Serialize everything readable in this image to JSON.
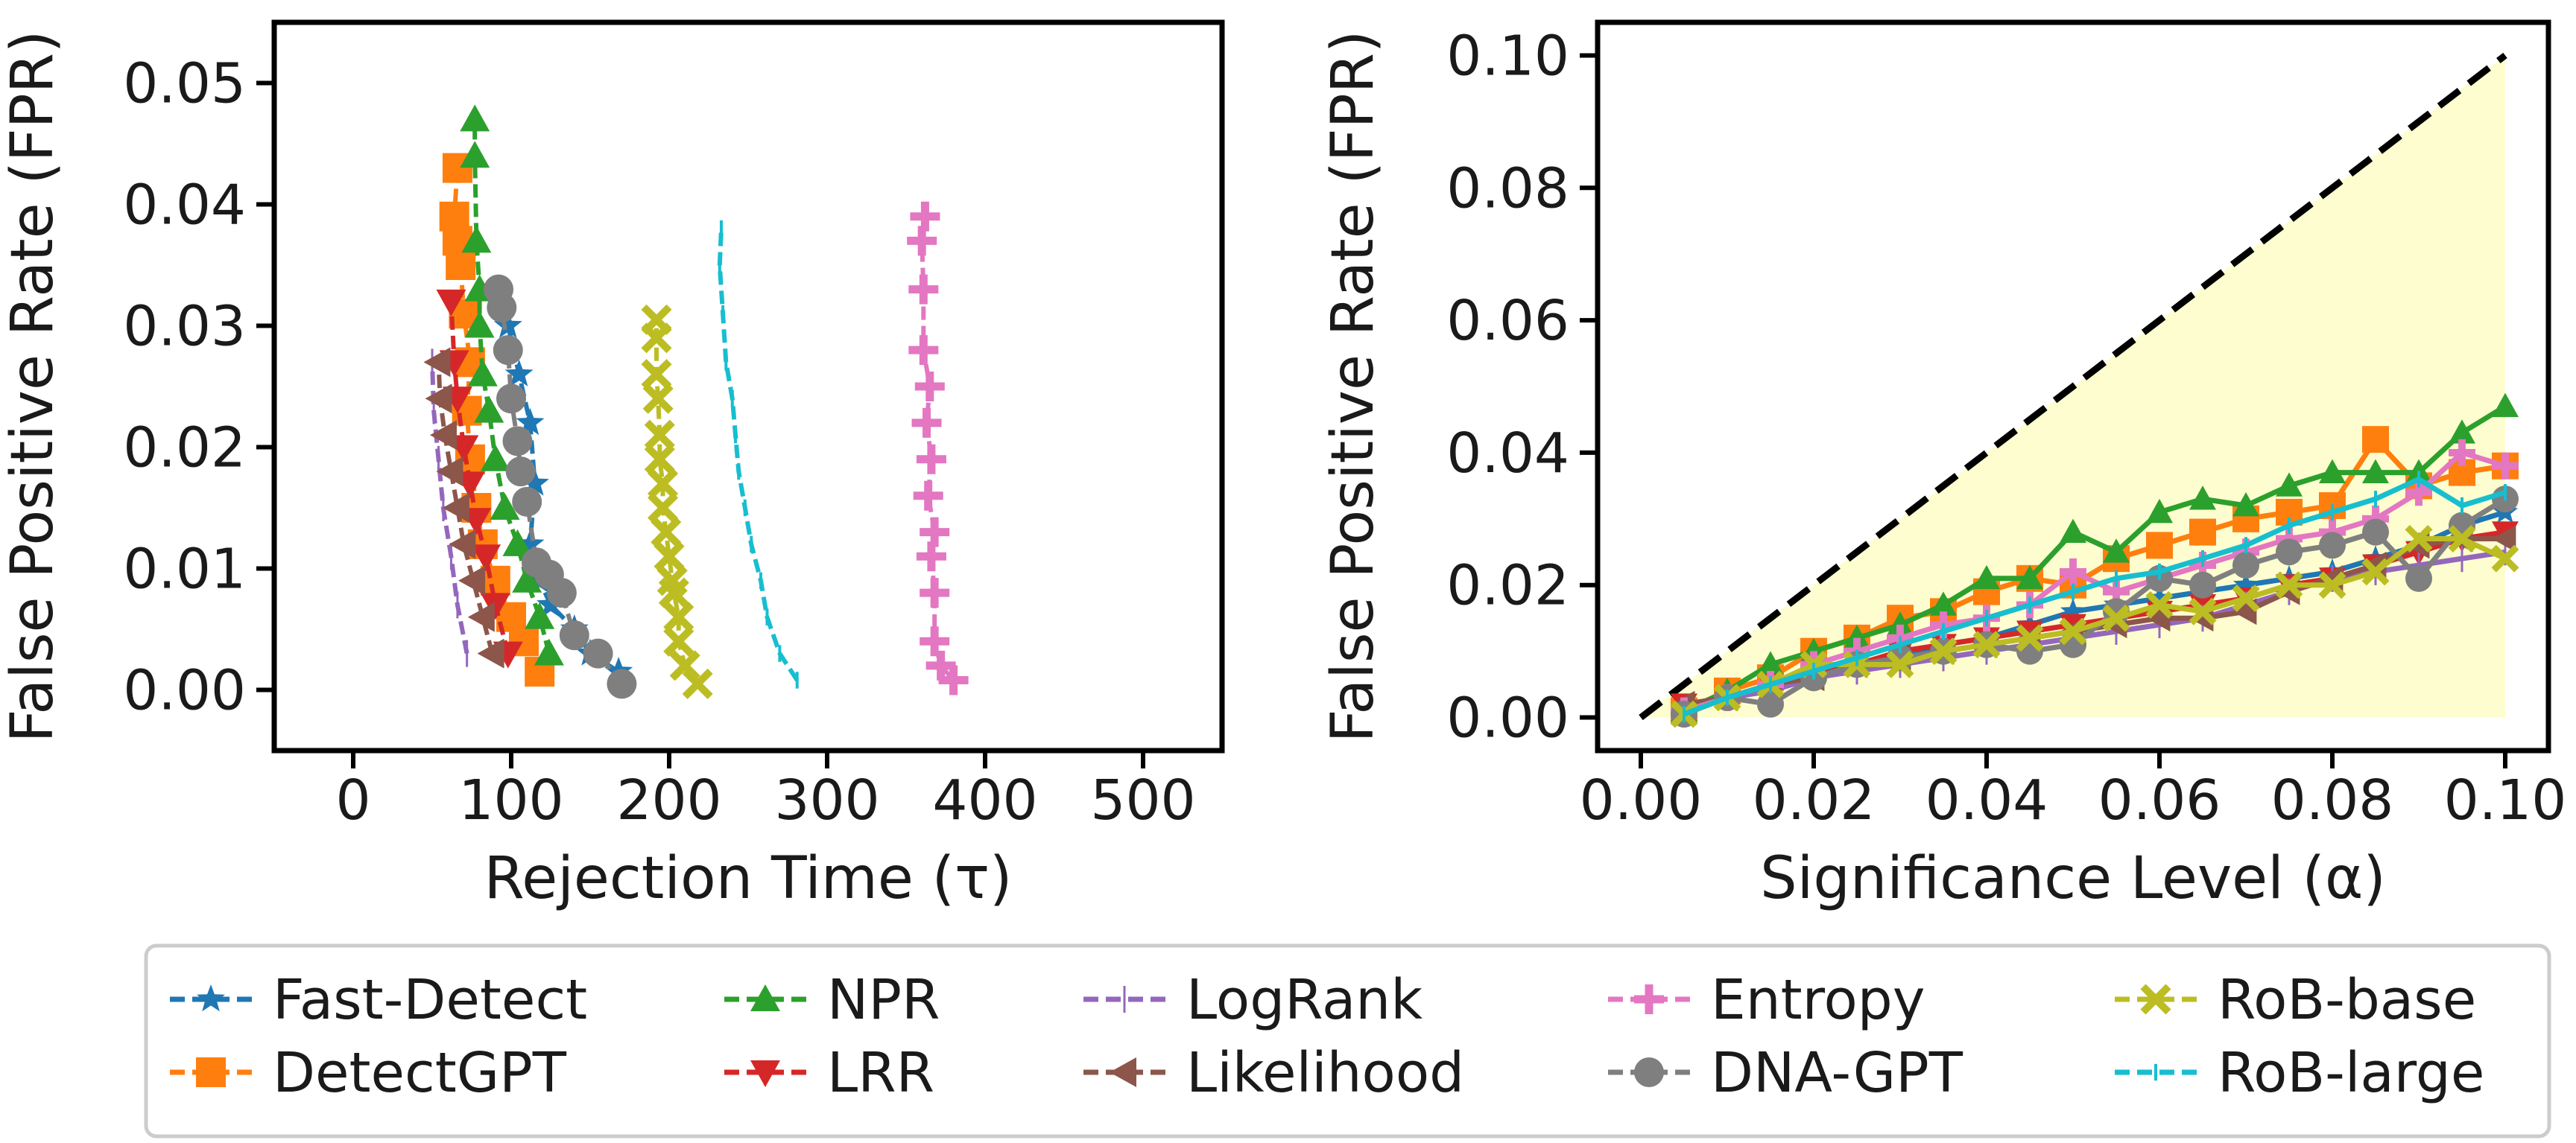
{
  "colors": {
    "Fast-Detect": "#1f77b4",
    "DetectGPT": "#ff7f0e",
    "NPR": "#2ca02c",
    "LRR": "#d62728",
    "LogRank": "#9467bd",
    "Likelihood": "#8c564b",
    "Entropy": "#e377c2",
    "DNA-GPT": "#7f7f7f",
    "RoB-base": "#bcbd22",
    "RoB-large": "#17becf",
    "shade": "#fdfdcf"
  },
  "legend": {
    "items": [
      {
        "label": "Fast-Detect",
        "marker": "star"
      },
      {
        "label": "DetectGPT",
        "marker": "square"
      },
      {
        "label": "NPR",
        "marker": "triangle-up"
      },
      {
        "label": "LRR",
        "marker": "triangle-down"
      },
      {
        "label": "LogRank",
        "marker": "vline"
      },
      {
        "label": "Likelihood",
        "marker": "triangle-left"
      },
      {
        "label": "Entropy",
        "marker": "plus"
      },
      {
        "label": "DNA-GPT",
        "marker": "circle"
      },
      {
        "label": "RoB-base",
        "marker": "x"
      },
      {
        "label": "RoB-large",
        "marker": "tick"
      }
    ],
    "placement": "bottom, below both panels, 5 columns"
  },
  "chart_data": [
    {
      "type": "line",
      "xlabel": "Rejection Time (τ)",
      "ylabel": "False Positive Rate (FPR)",
      "xlim": [
        -50,
        550
      ],
      "ylim": [
        -0.005,
        0.055
      ],
      "xticks": [
        "0",
        "100",
        "200",
        "300",
        "400",
        "500"
      ],
      "yticks": [
        "0.00",
        "0.01",
        "0.02",
        "0.03",
        "0.04",
        "0.05"
      ],
      "grid": false,
      "series": [
        {
          "name": "Fast-Detect",
          "points": [
            [
              168,
              0.0015
            ],
            [
              150,
              0.003
            ],
            [
              140,
              0.005
            ],
            [
              125,
              0.007
            ],
            [
              118,
              0.009
            ],
            [
              112,
              0.012
            ],
            [
              115,
              0.017
            ],
            [
              112,
              0.022
            ],
            [
              105,
              0.026
            ],
            [
              98,
              0.03
            ],
            [
              92,
              0.033
            ]
          ]
        },
        {
          "name": "DetectGPT",
          "points": [
            [
              118,
              0.0015
            ],
            [
              108,
              0.004
            ],
            [
              100,
              0.006
            ],
            [
              90,
              0.009
            ],
            [
              82,
              0.012
            ],
            [
              78,
              0.015
            ],
            [
              74,
              0.019
            ],
            [
              72,
              0.023
            ],
            [
              74,
              0.027
            ],
            [
              70,
              0.031
            ],
            [
              68,
              0.035
            ],
            [
              66,
              0.037
            ],
            [
              64,
              0.039
            ],
            [
              66,
              0.043
            ]
          ]
        },
        {
          "name": "NPR",
          "points": [
            [
              124,
              0.003
            ],
            [
              118,
              0.006
            ],
            [
              110,
              0.009
            ],
            [
              104,
              0.012
            ],
            [
              96,
              0.015
            ],
            [
              90,
              0.019
            ],
            [
              86,
              0.023
            ],
            [
              82,
              0.026
            ],
            [
              80,
              0.03
            ],
            [
              80,
              0.033
            ],
            [
              78,
              0.037
            ],
            [
              77,
              0.044
            ],
            [
              77,
              0.047
            ]
          ]
        },
        {
          "name": "LRR",
          "points": [
            [
              98,
              0.003
            ],
            [
              90,
              0.007
            ],
            [
              84,
              0.011
            ],
            [
              78,
              0.014
            ],
            [
              74,
              0.017
            ],
            [
              70,
              0.02
            ],
            [
              66,
              0.024
            ],
            [
              64,
              0.027
            ],
            [
              62,
              0.032
            ]
          ]
        },
        {
          "name": "LogRank",
          "points": [
            [
              72,
              0.003
            ],
            [
              66,
              0.007
            ],
            [
              62,
              0.011
            ],
            [
              57,
              0.015
            ],
            [
              54,
              0.019
            ],
            [
              51,
              0.023
            ],
            [
              50,
              0.027
            ]
          ]
        },
        {
          "name": "Likelihood",
          "points": [
            [
              88,
              0.003
            ],
            [
              82,
              0.006
            ],
            [
              76,
              0.009
            ],
            [
              70,
              0.012
            ],
            [
              66,
              0.015
            ],
            [
              62,
              0.018
            ],
            [
              58,
              0.021
            ],
            [
              55,
              0.024
            ],
            [
              54,
              0.027
            ]
          ]
        },
        {
          "name": "Entropy",
          "points": [
            [
              380,
              0.0008
            ],
            [
              372,
              0.002
            ],
            [
              368,
              0.004
            ],
            [
              368,
              0.008
            ],
            [
              366,
              0.011
            ],
            [
              368,
              0.013
            ],
            [
              364,
              0.016
            ],
            [
              366,
              0.019
            ],
            [
              363,
              0.022
            ],
            [
              365,
              0.025
            ],
            [
              361,
              0.028
            ],
            [
              361,
              0.033
            ],
            [
              360,
              0.037
            ],
            [
              362,
              0.039
            ]
          ]
        },
        {
          "name": "DNA-GPT",
          "points": [
            [
              170,
              0.0005
            ],
            [
              155,
              0.003
            ],
            [
              140,
              0.0045
            ],
            [
              132,
              0.008
            ],
            [
              124,
              0.0095
            ],
            [
              116,
              0.0105
            ],
            [
              110,
              0.0155
            ],
            [
              106,
              0.018
            ],
            [
              104,
              0.0205
            ],
            [
              100,
              0.024
            ],
            [
              98,
              0.028
            ],
            [
              94,
              0.0315
            ],
            [
              92,
              0.033
            ]
          ]
        },
        {
          "name": "RoB-base",
          "points": [
            [
              218,
              0.0005
            ],
            [
              210,
              0.002
            ],
            [
              206,
              0.004
            ],
            [
              206,
              0.006
            ],
            [
              203,
              0.008
            ],
            [
              202,
              0.009
            ],
            [
              200,
              0.011
            ],
            [
              198,
              0.013
            ],
            [
              196,
              0.015
            ],
            [
              196,
              0.017
            ],
            [
              194,
              0.019
            ],
            [
              194,
              0.021
            ],
            [
              193,
              0.024
            ],
            [
              192,
              0.026
            ],
            [
              192,
              0.029
            ],
            [
              192,
              0.0305
            ]
          ]
        },
        {
          "name": "RoB-large",
          "points": [
            [
              281,
              0.0008
            ],
            [
              270,
              0.003
            ],
            [
              262,
              0.006
            ],
            [
              258,
              0.009
            ],
            [
              252,
              0.012
            ],
            [
              248,
              0.015
            ],
            [
              244,
              0.018
            ],
            [
              242,
              0.021
            ],
            [
              240,
              0.024
            ],
            [
              236,
              0.027
            ],
            [
              234,
              0.031
            ],
            [
              232,
              0.035
            ],
            [
              233,
              0.038
            ]
          ]
        }
      ]
    },
    {
      "type": "line",
      "xlabel": "Significance Level (α)",
      "ylabel": "False Positive Rate (FPR)",
      "xlim": [
        -0.005,
        0.105
      ],
      "ylim": [
        -0.005,
        0.105
      ],
      "xticks": [
        "0.00",
        "0.02",
        "0.04",
        "0.06",
        "0.08",
        "0.10"
      ],
      "yticks": [
        "0.00",
        "0.02",
        "0.04",
        "0.06",
        "0.08",
        "0.10"
      ],
      "grid": false,
      "reference_line": {
        "from": [
          0,
          0
        ],
        "to": [
          0.1,
          0.1
        ],
        "style": "dashed",
        "color": "#000000"
      },
      "shaded_region": {
        "polygon": [
          [
            0,
            0
          ],
          [
            0.1,
            0.1
          ],
          [
            0.1,
            0
          ]
        ]
      },
      "x": [
        0.005,
        0.01,
        0.015,
        0.02,
        0.025,
        0.03,
        0.035,
        0.04,
        0.045,
        0.05,
        0.055,
        0.06,
        0.065,
        0.07,
        0.075,
        0.08,
        0.085,
        0.09,
        0.095,
        0.1
      ],
      "series": [
        {
          "name": "Fast-Detect",
          "values": [
            0.001,
            0.003,
            0.004,
            0.006,
            0.008,
            0.009,
            0.011,
            0.012,
            0.014,
            0.016,
            0.017,
            0.018,
            0.019,
            0.02,
            0.021,
            0.022,
            0.024,
            0.026,
            0.029,
            0.031
          ]
        },
        {
          "name": "DetectGPT",
          "values": [
            0.001,
            0.004,
            0.006,
            0.01,
            0.012,
            0.015,
            0.016,
            0.019,
            0.021,
            0.02,
            0.024,
            0.026,
            0.028,
            0.03,
            0.031,
            0.032,
            0.042,
            0.035,
            0.037,
            0.038
          ]
        },
        {
          "name": "NPR",
          "values": [
            0.001,
            0.004,
            0.008,
            0.01,
            0.012,
            0.014,
            0.017,
            0.021,
            0.021,
            0.028,
            0.025,
            0.031,
            0.033,
            0.032,
            0.035,
            0.037,
            0.037,
            0.037,
            0.043,
            0.047
          ]
        },
        {
          "name": "LRR",
          "values": [
            0.002,
            0.003,
            0.005,
            0.007,
            0.008,
            0.01,
            0.011,
            0.012,
            0.013,
            0.014,
            0.015,
            0.016,
            0.017,
            0.018,
            0.02,
            0.021,
            0.023,
            0.025,
            0.027,
            0.028
          ]
        },
        {
          "name": "LogRank",
          "values": [
            0.001,
            0.003,
            0.004,
            0.006,
            0.007,
            0.008,
            0.009,
            0.01,
            0.011,
            0.012,
            0.013,
            0.014,
            0.015,
            0.017,
            0.019,
            0.021,
            0.022,
            0.023,
            0.024,
            0.025
          ]
        },
        {
          "name": "Likelihood",
          "values": [
            0.002,
            0.003,
            0.005,
            0.006,
            0.008,
            0.009,
            0.01,
            0.011,
            0.012,
            0.013,
            0.014,
            0.015,
            0.015,
            0.016,
            0.019,
            0.021,
            0.023,
            0.026,
            0.027,
            0.027
          ]
        },
        {
          "name": "Entropy",
          "values": [
            0.001,
            0.003,
            0.005,
            0.008,
            0.01,
            0.012,
            0.014,
            0.015,
            0.017,
            0.022,
            0.019,
            0.021,
            0.023,
            0.025,
            0.027,
            0.028,
            0.03,
            0.034,
            0.04,
            0.038
          ]
        },
        {
          "name": "DNA-GPT",
          "values": [
            0.0005,
            0.003,
            0.002,
            0.006,
            0.008,
            0.009,
            0.01,
            0.011,
            0.01,
            0.011,
            0.016,
            0.021,
            0.02,
            0.023,
            0.025,
            0.026,
            0.028,
            0.021,
            0.029,
            0.033
          ]
        },
        {
          "name": "RoB-base",
          "values": [
            0.0005,
            0.003,
            0.005,
            0.008,
            0.008,
            0.008,
            0.01,
            0.011,
            0.012,
            0.013,
            0.015,
            0.017,
            0.016,
            0.018,
            0.02,
            0.02,
            0.022,
            0.027,
            0.027,
            0.024
          ]
        },
        {
          "name": "RoB-large",
          "values": [
            0.0005,
            0.003,
            0.005,
            0.007,
            0.009,
            0.011,
            0.013,
            0.015,
            0.017,
            0.019,
            0.021,
            0.022,
            0.024,
            0.026,
            0.029,
            0.031,
            0.033,
            0.036,
            0.032,
            0.034
          ]
        }
      ]
    }
  ]
}
